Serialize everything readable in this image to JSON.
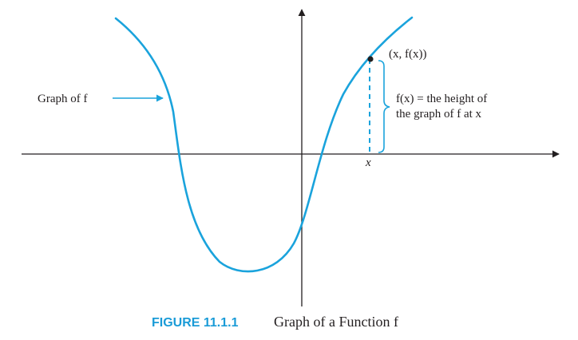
{
  "colors": {
    "curve": "#1aa3dc",
    "axis": "#231f20",
    "caption_accent": "#1a9bd7"
  },
  "diagram": {
    "curve_label": "Graph of f",
    "point_label": "(x, f(x))",
    "height_label_line1": "f(x) = the height of",
    "height_label_line2": "the graph of f at x",
    "x_marker_label": "x"
  },
  "caption": {
    "number": "FIGURE 11.1.1",
    "title": "Graph of a Function f"
  }
}
